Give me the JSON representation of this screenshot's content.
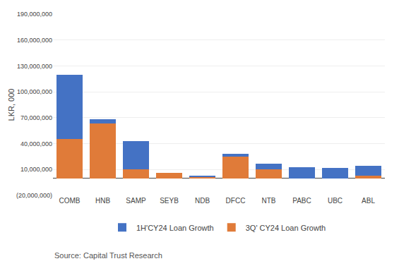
{
  "chart_data": {
    "type": "bar",
    "stacked": true,
    "categories": [
      "COMB",
      "HNB",
      "SAMP",
      "SEYB",
      "NDB",
      "DFCC",
      "NTB",
      "PABC",
      "UBC",
      "ABL"
    ],
    "series": [
      {
        "name": "3Q' CY24 Loan Growth",
        "color": "#E07B39",
        "values": [
          45000000,
          63000000,
          10000000,
          6000000,
          1000000,
          25000000,
          10000000,
          0,
          0,
          3000000
        ]
      },
      {
        "name": "1H'CY24 Loan Growth",
        "color": "#4472C4",
        "values": [
          75000000,
          5000000,
          33000000,
          0,
          2000000,
          3000000,
          7000000,
          13000000,
          12000000,
          11000000
        ]
      }
    ],
    "ylabel": "LKR, 000",
    "ylim": [
      -20000000,
      190000000
    ],
    "yticks": [
      {
        "value": -20000000,
        "label": "(20,000,000)"
      },
      {
        "value": 10000000,
        "label": "10,000,000"
      },
      {
        "value": 40000000,
        "label": "40,000,000"
      },
      {
        "value": 70000000,
        "label": "70,000,000"
      },
      {
        "value": 100000000,
        "label": "100,000,000"
      },
      {
        "value": 130000000,
        "label": "130,000,000"
      },
      {
        "value": 160000000,
        "label": "160,000,000"
      },
      {
        "value": 190000000,
        "label": "190,000,000"
      }
    ],
    "grid": true,
    "legend": "bottom",
    "annotations": [
      "Source: Capital Trust Research"
    ]
  }
}
